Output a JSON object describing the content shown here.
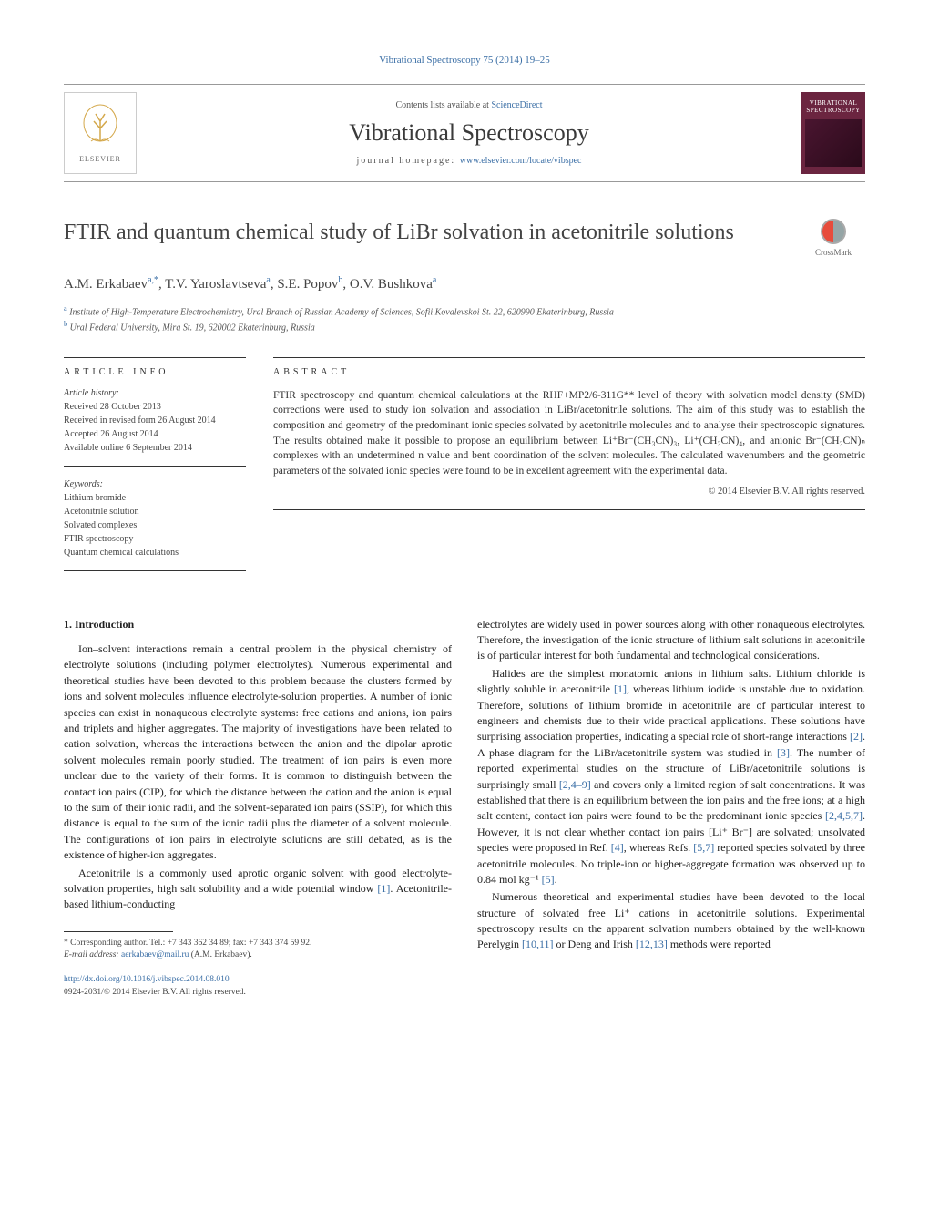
{
  "top_citation": "Vibrational Spectroscopy 75 (2014) 19–25",
  "header": {
    "contents_text": "Contents lists available at ",
    "contents_link": "ScienceDirect",
    "journal_name": "Vibrational Spectroscopy",
    "homepage_label": "journal homepage: ",
    "homepage_url": "www.elsevier.com/locate/vibspec",
    "elsevier_label": "ELSEVIER",
    "cover_title": "VIBRATIONAL SPECTROSCOPY"
  },
  "crossmark_label": "CrossMark",
  "title": "FTIR and quantum chemical study of LiBr solvation in acetonitrile solutions",
  "authors_html": "A.M. Erkabaev<sup>a,*</sup>, T.V. Yaroslavtseva<sup>a</sup>, S.E. Popov<sup>b</sup>, O.V. Bushkova<sup>a</sup>",
  "affiliations": [
    {
      "sup": "a",
      "text": "Institute of High-Temperature Electrochemistry, Ural Branch of Russian Academy of Sciences, Sofii Kovalevskoi St. 22, 620990 Ekaterinburg, Russia"
    },
    {
      "sup": "b",
      "text": "Ural Federal University, Mira St. 19, 620002 Ekaterinburg, Russia"
    }
  ],
  "article_info": {
    "heading": "ARTICLE INFO",
    "history_label": "Article history:",
    "history": [
      "Received 28 October 2013",
      "Received in revised form 26 August 2014",
      "Accepted 26 August 2014",
      "Available online 6 September 2014"
    ],
    "keywords_label": "Keywords:",
    "keywords": [
      "Lithium bromide",
      "Acetonitrile solution",
      "Solvated complexes",
      "FTIR spectroscopy",
      "Quantum chemical calculations"
    ]
  },
  "abstract": {
    "heading": "ABSTRACT",
    "text": "FTIR spectroscopy and quantum chemical calculations at the RHF+MP2/6-311G** level of theory with solvation model density (SMD) corrections were used to study ion solvation and association in LiBr/acetonitrile solutions. The aim of this study was to establish the composition and geometry of the predominant ionic species solvated by acetonitrile molecules and to analyse their spectroscopic signatures. The results obtained make it possible to propose an equilibrium between Li⁺Br⁻(CH₃CN)₃, Li⁺(CH₃CN)₄, and anionic Br⁻(CH₃CN)ₙ complexes with an undetermined n value and bent coordination of the solvent molecules. The calculated wavenumbers and the geometric parameters of the solvated ionic species were found to be in excellent agreement with the experimental data.",
    "copyright": "© 2014 Elsevier B.V. All rights reserved."
  },
  "sections": {
    "intro_head": "1.  Introduction",
    "left_paras": [
      "Ion–solvent interactions remain a central problem in the physical chemistry of electrolyte solutions (including polymer electrolytes). Numerous experimental and theoretical studies have been devoted to this problem because the clusters formed by ions and solvent molecules influence electrolyte-solution properties. A number of ionic species can exist in nonaqueous electrolyte systems: free cations and anions, ion pairs and triplets and higher aggregates. The majority of investigations have been related to cation solvation, whereas the interactions between the anion and the dipolar aprotic solvent molecules remain poorly studied. The treatment of ion pairs is even more unclear due to the variety of their forms. It is common to distinguish between the contact ion pairs (CIP), for which the distance between the cation and the anion is equal to the sum of their ionic radii, and the solvent-separated ion pairs (SSIP), for which this distance is equal to the sum of the ionic radii plus the diameter of a solvent molecule. The configurations of ion pairs in electrolyte solutions are still debated, as is the existence of higher-ion aggregates.",
      "Acetonitrile is a commonly used aprotic organic solvent with good electrolyte-solvation properties, high salt solubility and a wide potential window <span class=\"ref\">[1]</span>. Acetonitrile-based lithium-conducting"
    ],
    "right_paras": [
      "electrolytes are widely used in power sources along with other nonaqueous electrolytes. Therefore, the investigation of the ionic structure of lithium salt solutions in acetonitrile is of particular interest for both fundamental and technological considerations.",
      "Halides are the simplest monatomic anions in lithium salts. Lithium chloride is slightly soluble in acetonitrile <span class=\"ref\">[1]</span>, whereas lithium iodide is unstable due to oxidation. Therefore, solutions of lithium bromide in acetonitrile are of particular interest to engineers and chemists due to their wide practical applications. These solutions have surprising association properties, indicating a special role of short-range interactions <span class=\"ref\">[2]</span>. A phase diagram for the LiBr/acetonitrile system was studied in <span class=\"ref\">[3]</span>. The number of reported experimental studies on the structure of LiBr/acetonitrile solutions is surprisingly small <span class=\"ref\">[2,4–9]</span> and covers only a limited region of salt concentrations. It was established that there is an equilibrium between the ion pairs and the free ions; at a high salt content, contact ion pairs were found to be the predominant ionic species <span class=\"ref\">[2,4,5,7]</span>. However, it is not clear whether contact ion pairs [Li⁺ Br⁻] are solvated; unsolvated species were proposed in Ref. <span class=\"ref\">[4]</span>, whereas Refs. <span class=\"ref\">[5,7]</span> reported species solvated by three acetonitrile molecules. No triple-ion or higher-aggregate formation was observed up to 0.84 mol kg⁻¹ <span class=\"ref\">[5]</span>.",
      "Numerous theoretical and experimental studies have been devoted to the local structure of solvated free Li⁺ cations in acetonitrile solutions. Experimental spectroscopy results on the apparent solvation numbers obtained by the well-known Perelygin <span class=\"ref\">[10,11]</span> or Deng and Irish <span class=\"ref\">[12,13]</span> methods were reported"
    ]
  },
  "footnote": {
    "corr": "* Corresponding author. Tel.: +7 343 362 34 89; fax: +7 343 374 59 92.",
    "email_label": "E-mail address: ",
    "email": "aerkabaev@mail.ru",
    "email_tail": " (A.M. Erkabaev)."
  },
  "footer": {
    "doi": "http://dx.doi.org/10.1016/j.vibspec.2014.08.010",
    "issn_line": "0924-2031/© 2014 Elsevier B.V. All rights reserved."
  },
  "colors": {
    "link": "#3a6ea5",
    "cover_bg": "#6b2540",
    "text": "#333333",
    "rule": "#333333"
  }
}
